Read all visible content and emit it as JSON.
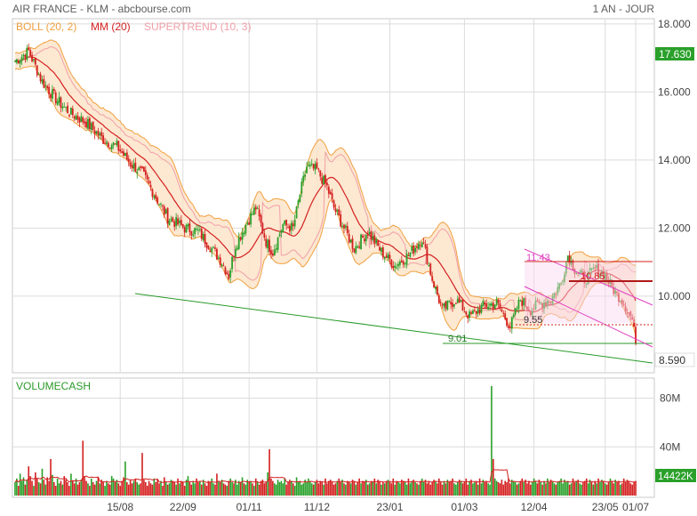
{
  "header": {
    "title": "AIR FRANCE - KLM - abcbourse.com",
    "period": "1 AN - JOUR"
  },
  "legend": [
    {
      "label": "BOLL (20, 2)",
      "color": "#f0a040"
    },
    {
      "label": "MM (20)",
      "color": "#d42020"
    },
    {
      "label": "SUPERTREND (10, 3)",
      "color": "#f0a0a8"
    }
  ],
  "volume_panel": {
    "label": "VOLUMECASH",
    "color": "#2a9a2a"
  },
  "colors": {
    "up": "#2aa02a",
    "down": "#d42020",
    "boll": "#f0a040",
    "boll_fill": "#fde2c6",
    "ma": "#d42020",
    "supertrend_green": "#4cc84c",
    "supertrend_red": "#f0a0a8",
    "trendline": "#2a9a2a",
    "channel": "#e040c0",
    "grid": "#dcdcdc"
  },
  "chart_data": [
    {
      "type": "candlestick",
      "x_ticks": [
        "15/08",
        "22/09",
        "01/11",
        "11/12",
        "23/01",
        "01/03",
        "12/04",
        "23/05",
        "01/07"
      ],
      "y_ticks": [
        "18.000",
        "16.000",
        "14.000",
        "12.000",
        "10.000"
      ],
      "ylim": [
        7.8,
        18.1
      ],
      "last_price": "17.630",
      "current_price": "8.590",
      "price_path": [
        [
          0,
          16.9
        ],
        [
          8,
          17.2
        ],
        [
          16,
          16.3
        ],
        [
          24,
          15.8
        ],
        [
          32,
          15.4
        ],
        [
          42,
          15.1
        ],
        [
          52,
          14.6
        ],
        [
          60,
          14.4
        ],
        [
          68,
          13.9
        ],
        [
          75,
          13.6
        ],
        [
          82,
          13.0
        ],
        [
          90,
          12.3
        ],
        [
          100,
          12.0
        ],
        [
          108,
          11.9
        ],
        [
          116,
          11.4
        ],
        [
          122,
          11.0
        ],
        [
          126,
          10.6
        ],
        [
          130,
          11.5
        ],
        [
          136,
          12.1
        ],
        [
          142,
          12.6
        ],
        [
          148,
          11.6
        ],
        [
          152,
          11.3
        ],
        [
          158,
          12.1
        ],
        [
          164,
          12.0
        ],
        [
          168,
          13.0
        ],
        [
          172,
          13.8
        ],
        [
          178,
          13.7
        ],
        [
          184,
          13.2
        ],
        [
          188,
          12.6
        ],
        [
          194,
          12.0
        ],
        [
          200,
          11.4
        ],
        [
          208,
          11.9
        ],
        [
          216,
          11.3
        ],
        [
          224,
          10.9
        ],
        [
          232,
          11.2
        ],
        [
          240,
          11.7
        ],
        [
          246,
          10.5
        ],
        [
          252,
          9.6
        ],
        [
          260,
          9.9
        ],
        [
          268,
          9.4
        ],
        [
          276,
          9.7
        ],
        [
          284,
          9.8
        ],
        [
          292,
          9.1
        ],
        [
          298,
          9.9
        ],
        [
          304,
          9.6
        ],
        [
          310,
          9.8
        ],
        [
          316,
          9.9
        ],
        [
          322,
          10.4
        ],
        [
          326,
          11.2
        ],
        [
          330,
          10.8
        ],
        [
          336,
          10.5
        ],
        [
          342,
          10.8
        ],
        [
          348,
          10.6
        ],
        [
          354,
          10.1
        ],
        [
          358,
          9.9
        ],
        [
          364,
          9.3
        ],
        [
          366,
          8.59
        ]
      ],
      "annotations": [
        "11.43",
        "10.85",
        "9.55",
        "9.01"
      ]
    },
    {
      "type": "bar",
      "title": "VOLUMECASH",
      "y_ticks": [
        "80M",
        "40M"
      ],
      "ylim": [
        0,
        95
      ],
      "last_value": "14422K",
      "bar_values_M": [
        11,
        14,
        8,
        18,
        12,
        15,
        9,
        13,
        24,
        16,
        12,
        8,
        19,
        14,
        11,
        10,
        22,
        13,
        9,
        15,
        12,
        30,
        17,
        11,
        8,
        14,
        10,
        12,
        9,
        16,
        13,
        11,
        8,
        18,
        12,
        10,
        14,
        9,
        11,
        13,
        45,
        16,
        12,
        10,
        8,
        14,
        11,
        9,
        12,
        15,
        10,
        13,
        11,
        8,
        12,
        10,
        9,
        16,
        14,
        11,
        13,
        10,
        8,
        12,
        15,
        28,
        11,
        9,
        13,
        10,
        12,
        14,
        11,
        9,
        10,
        35,
        13,
        11,
        8,
        12,
        10,
        9,
        14,
        11,
        13,
        10,
        12,
        8,
        15,
        11,
        9,
        10,
        13,
        12,
        11,
        9,
        14,
        10,
        12,
        11,
        8,
        13,
        16,
        11,
        9,
        12,
        10,
        14,
        11,
        12,
        9,
        13,
        10,
        8,
        12,
        11,
        14,
        10,
        9,
        18,
        12,
        11,
        13,
        10,
        9,
        8,
        12,
        14,
        11,
        10,
        13,
        9,
        12,
        11,
        15,
        10,
        9,
        13,
        11,
        12,
        10,
        8,
        14,
        11,
        9,
        12,
        13,
        10,
        11,
        19,
        38,
        14,
        12,
        10,
        9,
        13,
        11,
        12,
        10,
        14,
        9,
        11,
        13,
        12,
        10,
        8,
        15,
        11,
        12,
        9,
        10,
        13,
        11,
        14,
        12,
        10,
        9,
        11,
        13,
        10,
        12,
        11,
        9,
        14,
        10,
        12,
        13,
        11,
        9,
        10,
        12,
        14,
        11,
        13,
        10,
        9,
        12,
        11,
        10,
        13,
        12,
        9,
        11,
        14,
        10,
        12,
        11,
        13,
        9,
        10,
        12,
        11,
        14,
        10,
        13,
        12,
        9,
        11,
        10,
        12,
        13,
        11,
        10,
        14,
        9,
        12,
        11,
        10,
        13,
        12,
        11,
        9,
        14,
        10,
        12,
        13,
        11,
        10,
        9,
        12,
        14,
        11,
        13,
        10,
        12,
        9,
        11,
        13,
        12,
        10,
        14,
        11,
        9,
        12,
        10,
        13,
        11,
        12,
        14,
        10,
        9,
        11,
        13,
        12,
        10,
        11,
        14,
        9,
        12,
        13,
        10,
        11,
        12,
        9,
        14,
        10,
        13,
        11,
        12,
        10,
        9,
        90,
        30,
        14,
        12,
        11,
        10,
        13,
        9,
        12,
        11,
        14,
        10,
        13,
        12,
        11,
        9,
        10,
        12,
        14,
        11,
        13,
        10,
        12,
        9,
        11,
        14,
        12,
        10,
        13,
        11,
        9,
        12,
        10,
        14,
        11,
        13,
        12,
        10,
        9,
        11,
        12,
        14,
        10,
        13,
        11,
        12,
        9,
        10,
        14,
        11,
        12,
        13,
        10,
        9,
        11,
        12,
        14,
        10,
        13,
        11,
        9,
        12,
        10,
        14,
        11,
        13,
        12,
        10,
        9,
        11,
        14,
        12,
        10,
        13,
        11,
        12,
        9,
        10,
        14,
        11,
        13,
        12,
        10,
        9,
        11,
        12,
        14
      ]
    }
  ]
}
